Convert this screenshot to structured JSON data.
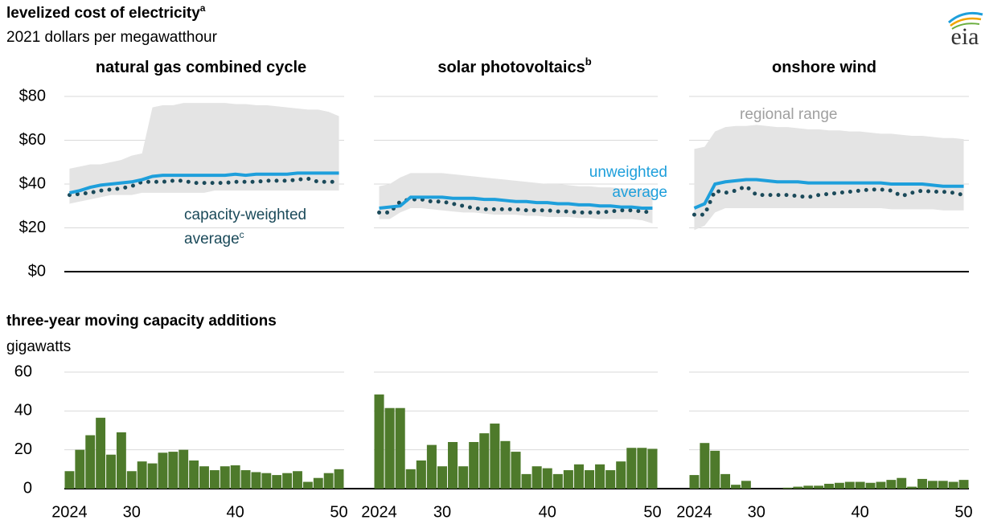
{
  "logo": "eia",
  "chart_data": [
    {
      "type": "line",
      "title": "levelized cost of electricity",
      "title_note": "a",
      "subtitle": "2021 dollars per megawatthour",
      "x": [
        2024,
        2025,
        2026,
        2027,
        2028,
        2029,
        2030,
        2031,
        2032,
        2033,
        2034,
        2035,
        2036,
        2037,
        2038,
        2039,
        2040,
        2041,
        2042,
        2043,
        2044,
        2045,
        2046,
        2047,
        2048,
        2049,
        2050
      ],
      "xlim": [
        2023.5,
        2050.5
      ],
      "ylim": [
        0,
        80
      ],
      "yticks": [
        {
          "value": 0,
          "label": "$0"
        },
        {
          "value": 20,
          "label": "$20"
        },
        {
          "value": 40,
          "label": "$40"
        },
        {
          "value": 60,
          "label": "$60"
        },
        {
          "value": 80,
          "label": "$80"
        }
      ],
      "grid": true,
      "series": [
        {
          "name": "regional range",
          "color": "#e4e4e4",
          "text_color": "#a0a0a0"
        },
        {
          "name": "unweighted average",
          "color": "#1e9fdb"
        },
        {
          "name": "capacity-weighted average",
          "note": "c",
          "color": "#1b4a5a",
          "style": "dotted"
        }
      ],
      "panels": [
        {
          "title": "natural gas combined cycle",
          "range_high": [
            47,
            48,
            49,
            49,
            50,
            51,
            53,
            54,
            75,
            76,
            76,
            77,
            77,
            77,
            77,
            77,
            76.5,
            76.5,
            76,
            76,
            75.5,
            75,
            74.5,
            74,
            74,
            73,
            71
          ],
          "range_low": [
            31,
            32,
            33,
            34,
            35,
            35,
            35,
            36,
            36,
            36,
            36,
            36,
            36,
            36,
            37,
            37,
            37,
            37,
            37,
            37,
            37,
            37,
            37,
            37,
            37,
            37,
            37
          ],
          "unweighted": [
            36,
            37,
            38.5,
            39.5,
            40,
            40.5,
            41,
            42,
            43.5,
            44,
            44,
            44,
            44,
            44,
            44,
            44,
            44.5,
            44,
            44.5,
            44.5,
            44.5,
            44.5,
            45,
            45,
            45,
            45,
            45
          ],
          "weighted": [
            35,
            35.5,
            36,
            37,
            37.5,
            38,
            39,
            41,
            41,
            41,
            41.5,
            41.5,
            40.5,
            40.5,
            40.5,
            40.5,
            41,
            41,
            41,
            41.5,
            41.5,
            41.5,
            42,
            42.5,
            41,
            41,
            41
          ]
        },
        {
          "title": "solar photovoltaics",
          "note": "b",
          "range_high": [
            39,
            40,
            43,
            45,
            45,
            45,
            45,
            44.5,
            44,
            43.5,
            43,
            42.5,
            42,
            41.5,
            41,
            40.5,
            40,
            40,
            39.5,
            39,
            39,
            38.5,
            38.5,
            38,
            38,
            37.5,
            37
          ],
          "range_low": [
            24,
            24,
            27,
            29,
            29,
            28.5,
            28,
            27.5,
            27,
            27,
            26.5,
            26,
            26,
            26,
            25.5,
            25.5,
            25,
            25,
            25,
            24.5,
            24.5,
            24,
            24,
            24,
            24,
            23.5,
            22
          ],
          "unweighted": [
            29,
            29.5,
            30,
            34,
            34,
            34,
            34,
            33.5,
            33.5,
            33.5,
            33,
            33,
            32.5,
            32,
            32,
            31.5,
            31.5,
            31,
            31,
            30.5,
            30.5,
            30,
            30,
            29.5,
            29.5,
            29,
            29
          ],
          "weighted": [
            27,
            27,
            32,
            33,
            33,
            32,
            32,
            31,
            30,
            29,
            28.5,
            28.5,
            28.5,
            28.5,
            28,
            28,
            28,
            27.5,
            27.5,
            27,
            27,
            27,
            27.5,
            28,
            28,
            27.5,
            27
          ]
        },
        {
          "title": "onshore wind",
          "range_high": [
            56,
            57,
            64,
            66,
            66.5,
            66.5,
            67,
            66.5,
            66,
            66,
            65.5,
            65,
            65,
            64.5,
            64.5,
            64,
            64,
            63.5,
            63,
            63,
            62.5,
            62,
            62,
            61.5,
            61,
            61,
            60.5
          ],
          "range_low": [
            19,
            21,
            27,
            29,
            29,
            29,
            29,
            29,
            29,
            29,
            29,
            29,
            29,
            29,
            29,
            29,
            29,
            29,
            29,
            28.5,
            28.5,
            28.5,
            28.5,
            28.5,
            28,
            28,
            28
          ],
          "unweighted": [
            29,
            31,
            40,
            41,
            41.5,
            42,
            42,
            41.5,
            41,
            41,
            41,
            40.5,
            40.5,
            40.5,
            40.5,
            40.5,
            40.5,
            40.5,
            40.5,
            40,
            40,
            40,
            40,
            39.5,
            39,
            39,
            39
          ],
          "weighted": [
            26,
            26,
            37,
            36,
            37,
            39,
            35,
            35,
            35,
            35,
            34.5,
            34,
            35,
            35.5,
            36,
            36.5,
            37,
            37.5,
            37.5,
            37,
            34.5,
            36,
            37,
            36.5,
            36.5,
            36,
            35
          ]
        }
      ]
    },
    {
      "type": "bar",
      "title": "three-year moving capacity additions",
      "subtitle": "gigawatts",
      "x": [
        2024,
        2025,
        2026,
        2027,
        2028,
        2029,
        2030,
        2031,
        2032,
        2033,
        2034,
        2035,
        2036,
        2037,
        2038,
        2039,
        2040,
        2041,
        2042,
        2043,
        2044,
        2045,
        2046,
        2047,
        2048,
        2049,
        2050
      ],
      "xlim": [
        2023.5,
        2050.5
      ],
      "xticks": [
        {
          "value": 2024,
          "label": "2024"
        },
        {
          "value": 2030,
          "label": "30"
        },
        {
          "value": 2040,
          "label": "40"
        },
        {
          "value": 2050,
          "label": "50"
        }
      ],
      "ylim": [
        0,
        60
      ],
      "yticks": [
        0,
        20,
        40,
        60
      ],
      "grid": true,
      "color": "#4e7a2b",
      "panels": [
        {
          "values": [
            9,
            20,
            27.5,
            36.5,
            17.5,
            29,
            9,
            14,
            13,
            18.5,
            19,
            20,
            14.5,
            11.5,
            9.5,
            11.5,
            12,
            9.5,
            8.5,
            8,
            7,
            8,
            9,
            3.5,
            5.5,
            8,
            10
          ]
        },
        {
          "values": [
            48.5,
            41.5,
            41.5,
            10,
            14.5,
            22.5,
            11.5,
            24,
            11.5,
            24,
            28.5,
            33.5,
            24.5,
            19,
            7.5,
            11.5,
            10.5,
            7.5,
            9.5,
            12.5,
            9.5,
            12.5,
            9.5,
            14,
            21,
            21,
            20.5
          ]
        },
        {
          "values": [
            7,
            23.5,
            19.5,
            7.5,
            2,
            4,
            0,
            0,
            0,
            0.5,
            1,
            1.5,
            1.5,
            2.5,
            3,
            3.5,
            3.5,
            3,
            3.5,
            4.5,
            5.5,
            1,
            5,
            4,
            4,
            3.5,
            4.5
          ]
        }
      ]
    }
  ]
}
